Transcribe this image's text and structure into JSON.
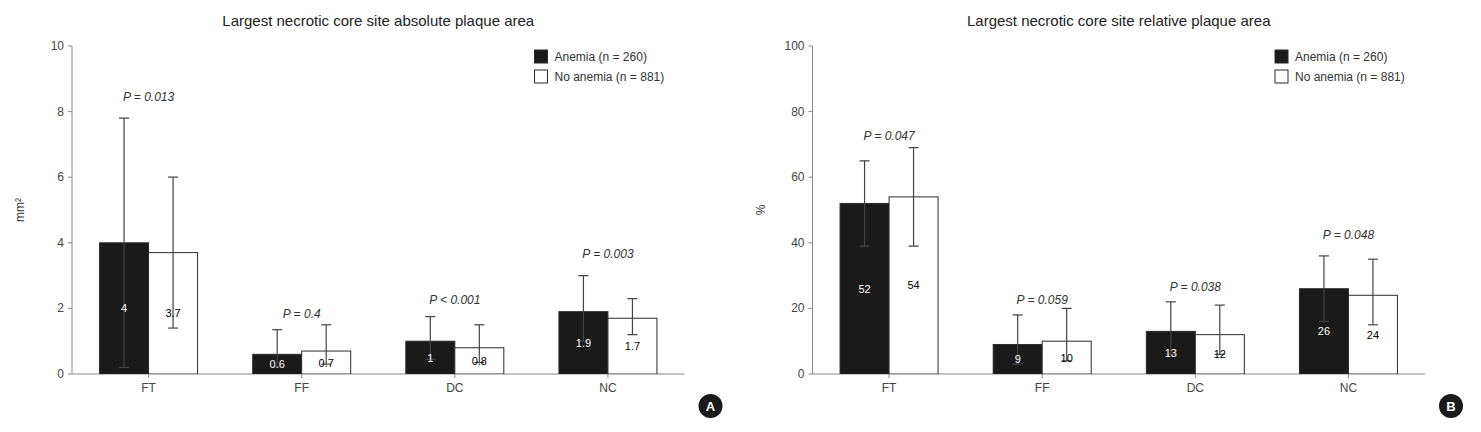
{
  "chart_data": [
    {
      "type": "bar",
      "title": "Largest necrotic core site absolute plaque area",
      "ylabel": "mm²",
      "categories": [
        "FT",
        "FF",
        "DC",
        "NC"
      ],
      "series": [
        {
          "name": "Anemia (n = 260)",
          "color": "#1a1a1a",
          "values": [
            4.0,
            0.6,
            1.0,
            1.9
          ],
          "error_up": [
            3.8,
            0.75,
            0.75,
            1.1
          ],
          "error_down": [
            3.8,
            0.38,
            0.55,
            0.9
          ]
        },
        {
          "name": "No anemia (n = 881)",
          "color": "#ffffff",
          "values": [
            3.7,
            0.7,
            0.8,
            1.7
          ],
          "error_up": [
            2.3,
            0.8,
            0.7,
            0.6
          ],
          "error_down": [
            2.3,
            0.4,
            0.45,
            0.5
          ]
        }
      ],
      "ylim": [
        0,
        10
      ],
      "yticks": [
        0,
        2,
        4,
        6,
        8,
        10
      ],
      "data_labels": true,
      "grid": false,
      "legend": "upper right",
      "annotations": [
        {
          "text": "P = 0.013",
          "category": "FT",
          "y": 8.2
        },
        {
          "text": "P = 0.4",
          "category": "FF",
          "y": 1.6
        },
        {
          "text": "P < 0.001",
          "category": "DC",
          "y": 2.0
        },
        {
          "text": "P = 0.003",
          "category": "NC",
          "y": 3.4
        }
      ],
      "panel_label": "A"
    },
    {
      "type": "bar",
      "title": "Largest necrotic core site relative plaque area",
      "ylabel": "%",
      "categories": [
        "FT",
        "FF",
        "DC",
        "NC"
      ],
      "series": [
        {
          "name": "Anemia (n = 260)",
          "color": "#1a1a1a",
          "values": [
            52,
            9,
            13,
            26
          ],
          "error_up": [
            13,
            9,
            9,
            10
          ],
          "error_down": [
            13,
            6,
            7,
            10
          ]
        },
        {
          "name": "No anemia (n = 881)",
          "color": "#ffffff",
          "values": [
            54,
            10,
            12,
            24
          ],
          "error_up": [
            15,
            10,
            9,
            11
          ],
          "error_down": [
            15,
            6,
            6,
            9
          ]
        }
      ],
      "ylim": [
        0,
        100
      ],
      "yticks": [
        0,
        20,
        40,
        60,
        80,
        100
      ],
      "data_labels": true,
      "grid": false,
      "legend": "upper right",
      "annotations": [
        {
          "text": "P = 0.047",
          "category": "FT",
          "y": 70
        },
        {
          "text": "P = 0.059",
          "category": "FF",
          "y": 20
        },
        {
          "text": "P = 0.038",
          "category": "DC",
          "y": 24
        },
        {
          "text": "P = 0.048",
          "category": "NC",
          "y": 40
        }
      ],
      "panel_label": "B"
    }
  ]
}
